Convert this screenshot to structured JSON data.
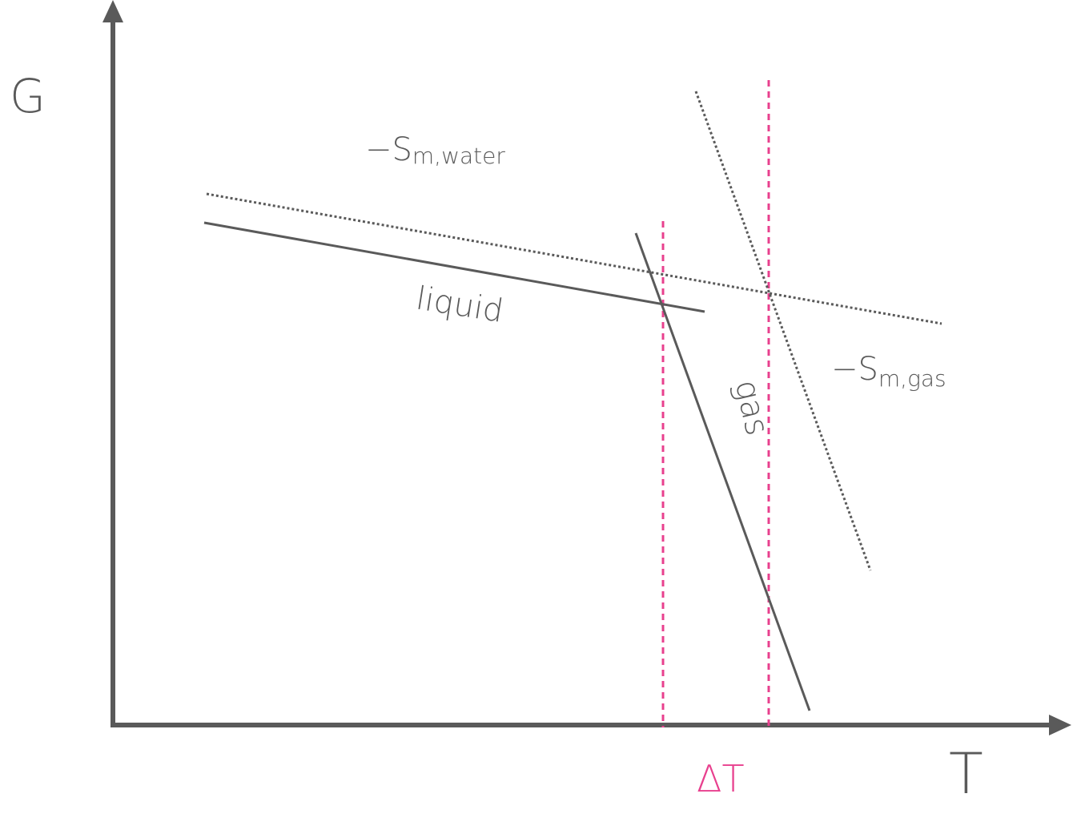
{
  "axes": {
    "y_label": "G",
    "x_label": "T"
  },
  "curves": {
    "liquid": "liquid",
    "gas": "gas"
  },
  "slopes": {
    "water": {
      "main": "−S",
      "sub": "m,water"
    },
    "gas": {
      "main": "−S",
      "sub": "m,gas"
    }
  },
  "delta": "ΔT"
}
